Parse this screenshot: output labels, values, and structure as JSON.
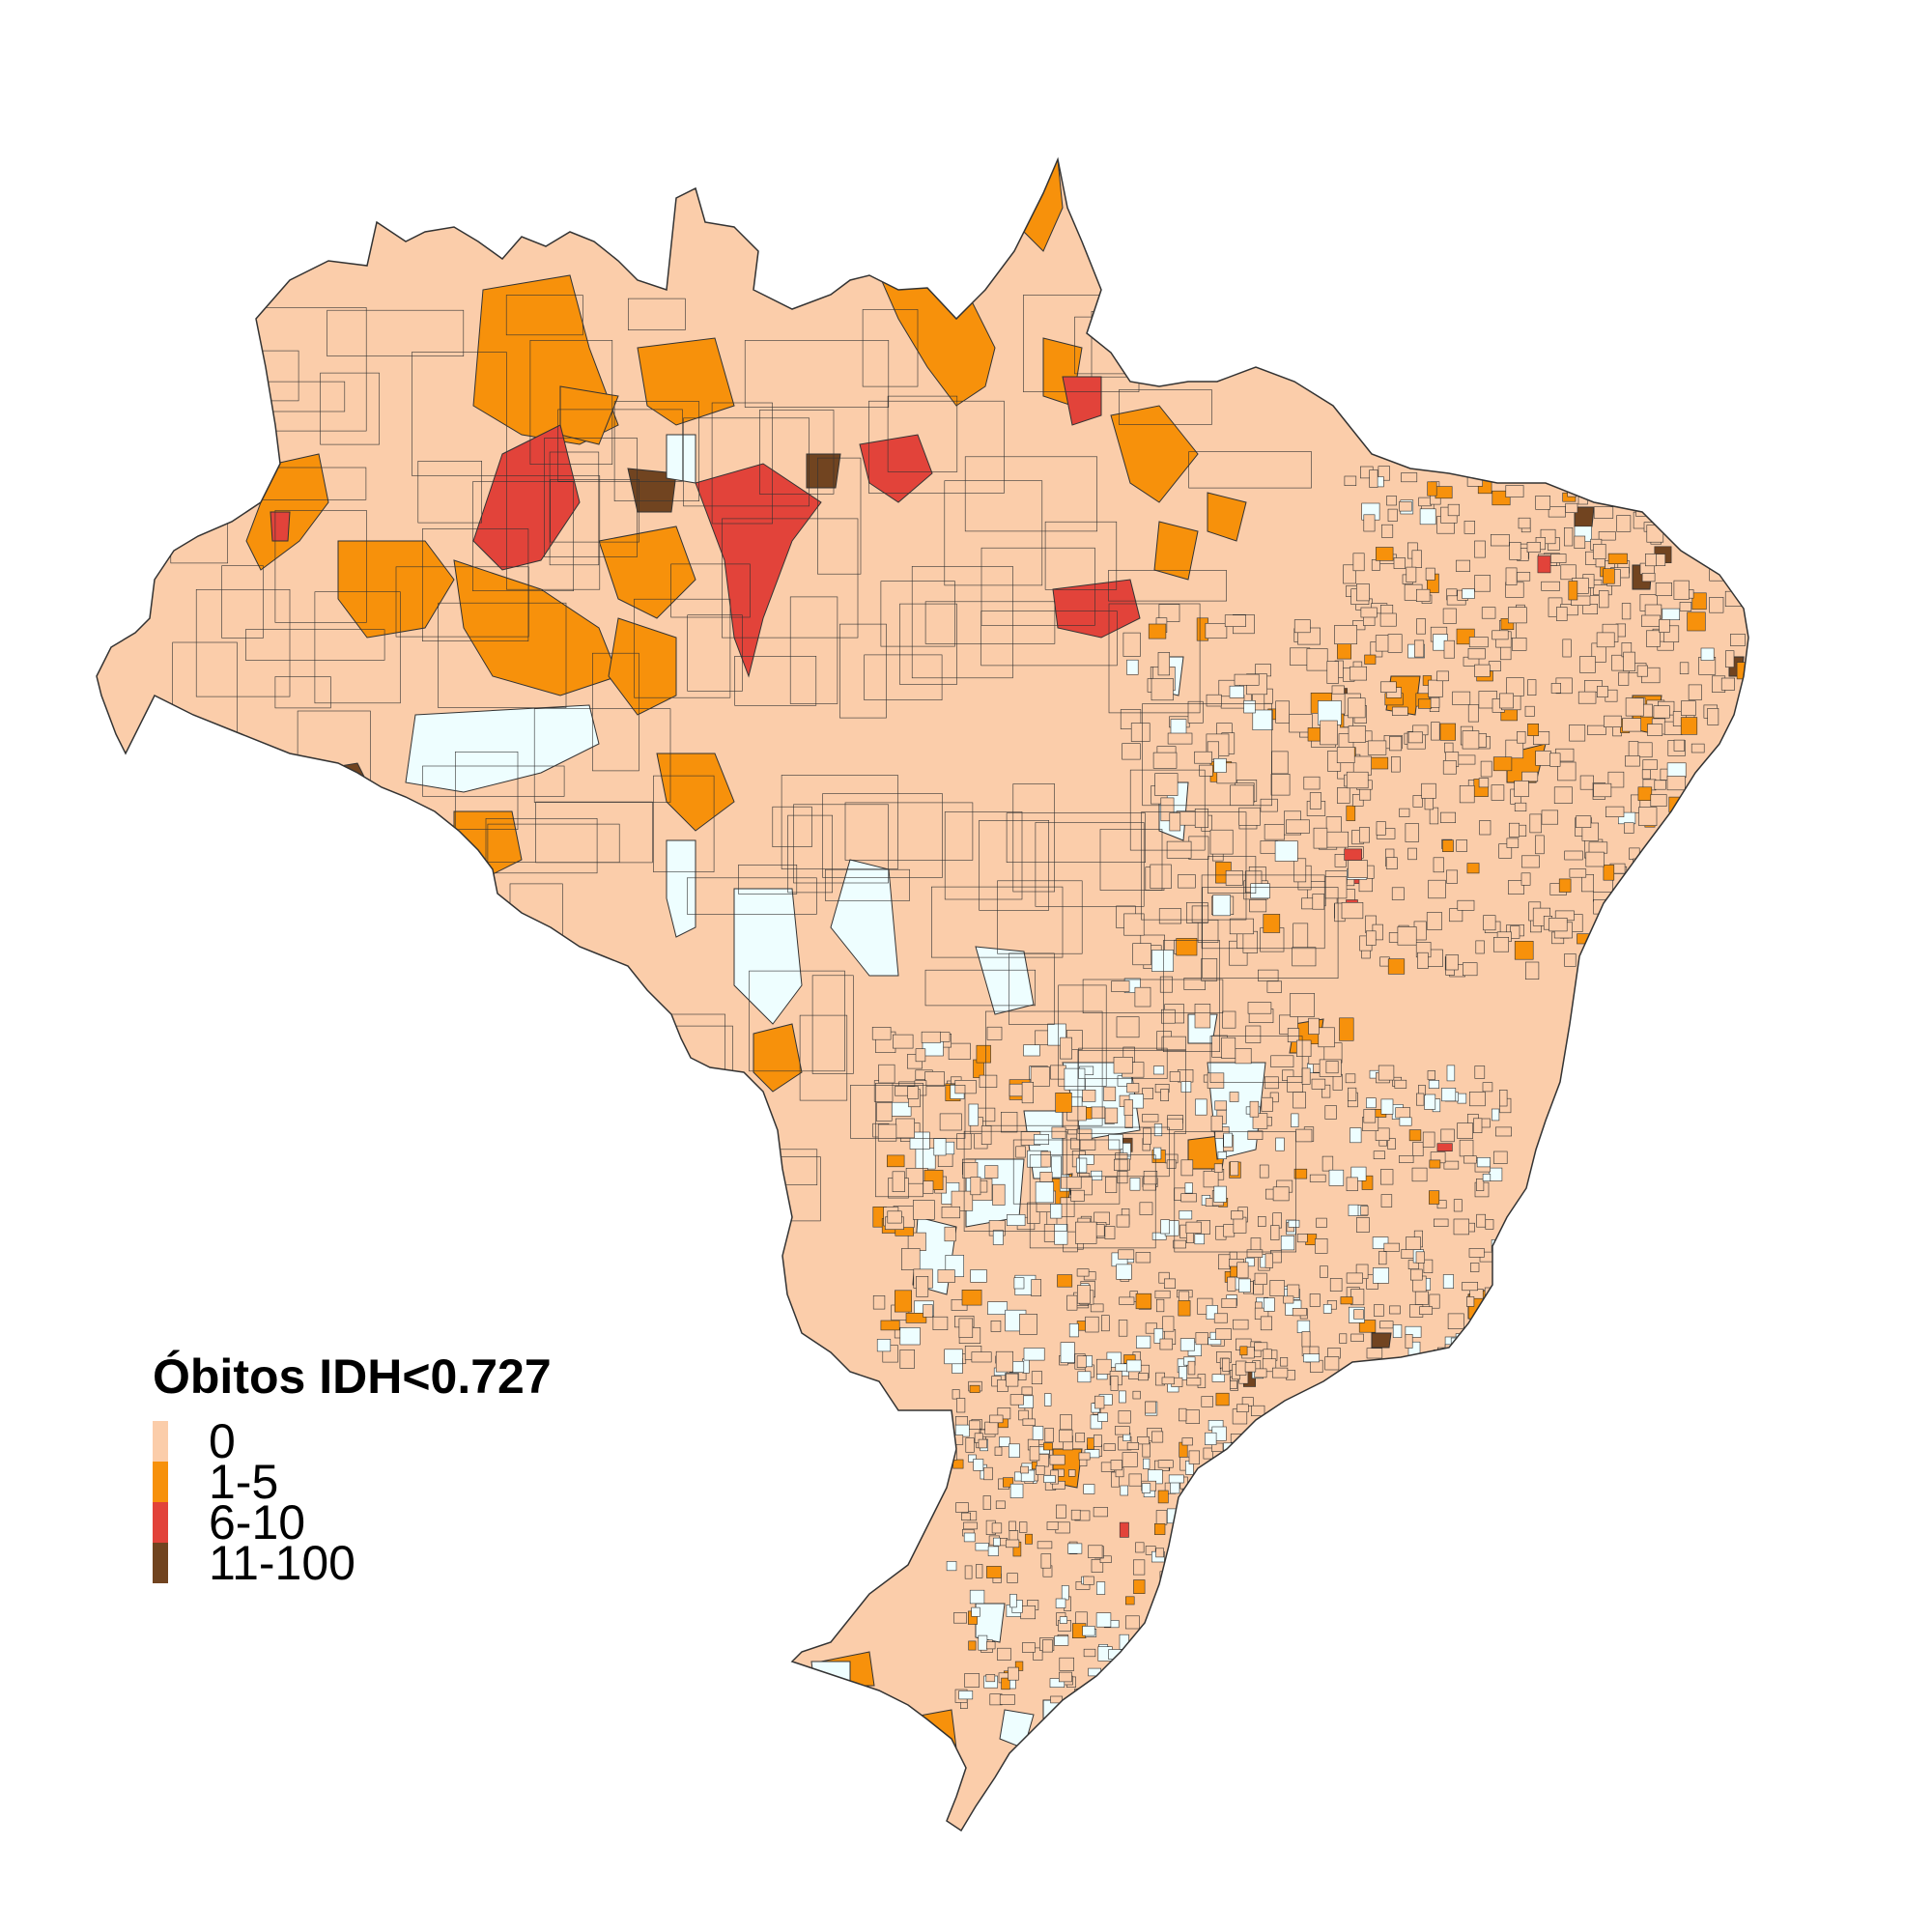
{
  "legend": {
    "title": "Óbitos IDH<0.727",
    "items": [
      {
        "label": "0",
        "color": "#FBCDAA"
      },
      {
        "label": "1-5",
        "color": "#F7910B"
      },
      {
        "label": "6-10",
        "color": "#E2433A"
      },
      {
        "label": "11-100",
        "color": "#714420"
      }
    ]
  },
  "no_data_color": "#EEFEFF",
  "border_color": "#333333"
}
